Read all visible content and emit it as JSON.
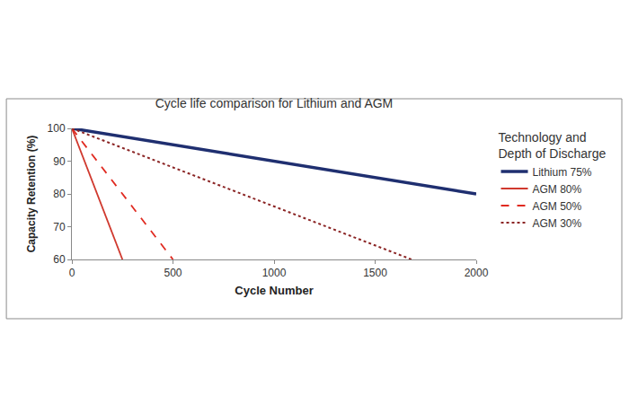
{
  "chart_data": {
    "type": "line",
    "title": "Cycle life comparison for Lithium and AGM",
    "x_label": "Cycle Number",
    "y_label": "Capacity Retention (%)",
    "legend_title": [
      "Technology and",
      "Depth of Discharge"
    ],
    "legend": "right",
    "grid": false,
    "xlim": [
      0,
      2000
    ],
    "xticks": [
      0,
      500,
      1000,
      1500,
      2000
    ],
    "ylim": [
      60,
      100
    ],
    "yticks": [
      60,
      70,
      80,
      90,
      100
    ],
    "series": [
      {
        "name": "Lithium 75%",
        "color": "#1f2f70",
        "line_style": "solid",
        "x": [
          0,
          2000
        ],
        "values": [
          100,
          80
        ]
      },
      {
        "name": "AGM 80%",
        "color": "#d0392e",
        "line_style": "solid",
        "x": [
          0,
          250
        ],
        "values": [
          100,
          60
        ]
      },
      {
        "name": "AGM 50%",
        "color": "#e02a20",
        "line_style": "dash",
        "x": [
          0,
          500
        ],
        "values": [
          100,
          60
        ]
      },
      {
        "name": "AGM 30%",
        "color": "#8b2525",
        "line_style": "dot",
        "x": [
          0,
          1680
        ],
        "values": [
          100,
          60
        ]
      }
    ]
  }
}
